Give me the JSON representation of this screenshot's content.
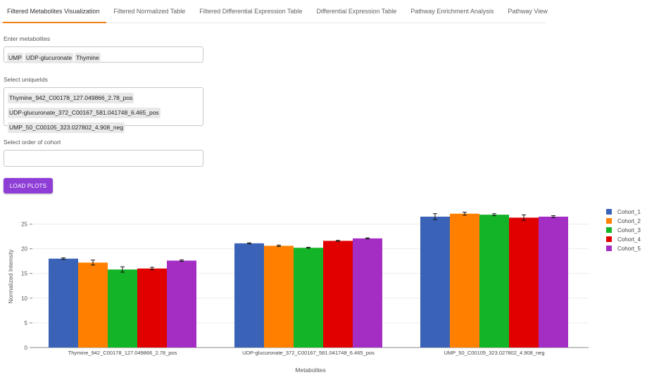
{
  "tabs": [
    {
      "label": "Filtered Metabolites Visualization",
      "active": true
    },
    {
      "label": "Filtered Normalized Table",
      "active": false
    },
    {
      "label": "Filtered Differential Expression Table",
      "active": false
    },
    {
      "label": "Differential Expression Table",
      "active": false
    },
    {
      "label": "Pathway Enrichment Analysis",
      "active": false
    },
    {
      "label": "Pathway View",
      "active": false
    }
  ],
  "metabolites": {
    "label": "Enter metabolites",
    "values": [
      "UMP",
      "UDP-glucuronate",
      "Thymine"
    ]
  },
  "uniqueids": {
    "label": "Select uniqueIds",
    "values": [
      "Thymine_942_C00178_127.049866_2.78_pos",
      "UDP-glucuronate_372_C00167_581.041748_6.465_pos",
      "UMP_50_C00105_323.027802_4.908_neg"
    ]
  },
  "cohort_order": {
    "label": "Select order of cohort",
    "value": ""
  },
  "load_button": "LOAD PLOTS",
  "chart_data": {
    "type": "bar",
    "title": "",
    "xlabel": "Metabolites",
    "ylabel": "Normalized Intensity",
    "ylim": [
      0,
      28
    ],
    "yticks": [
      0,
      5,
      10,
      15,
      20,
      25
    ],
    "grid": true,
    "legend": "right",
    "categories": [
      "Thymine_942_C00178_127.049866_2.78_pos",
      "UDP-glucuronate_372_C00167_581.041748_6.465_pos",
      "UMP_50_C00105_323.027802_4.908_neg"
    ],
    "series": [
      {
        "name": "Cohort_1",
        "color": "#3a63b8",
        "values": [
          18.0,
          21.1,
          26.5
        ],
        "errors": [
          0.15,
          0.1,
          0.6
        ]
      },
      {
        "name": "Cohort_2",
        "color": "#ff8000",
        "values": [
          17.2,
          20.6,
          27.1
        ],
        "errors": [
          0.5,
          0.15,
          0.3
        ]
      },
      {
        "name": "Cohort_3",
        "color": "#14b428",
        "values": [
          15.8,
          20.2,
          26.9
        ],
        "errors": [
          0.55,
          0.1,
          0.2
        ]
      },
      {
        "name": "Cohort_4",
        "color": "#e00000",
        "values": [
          16.0,
          21.6,
          26.3
        ],
        "errors": [
          0.25,
          0.1,
          0.55
        ]
      },
      {
        "name": "Cohort_5",
        "color": "#a42ec4",
        "values": [
          17.6,
          22.1,
          26.5
        ],
        "errors": [
          0.15,
          0.1,
          0.2
        ]
      }
    ]
  }
}
